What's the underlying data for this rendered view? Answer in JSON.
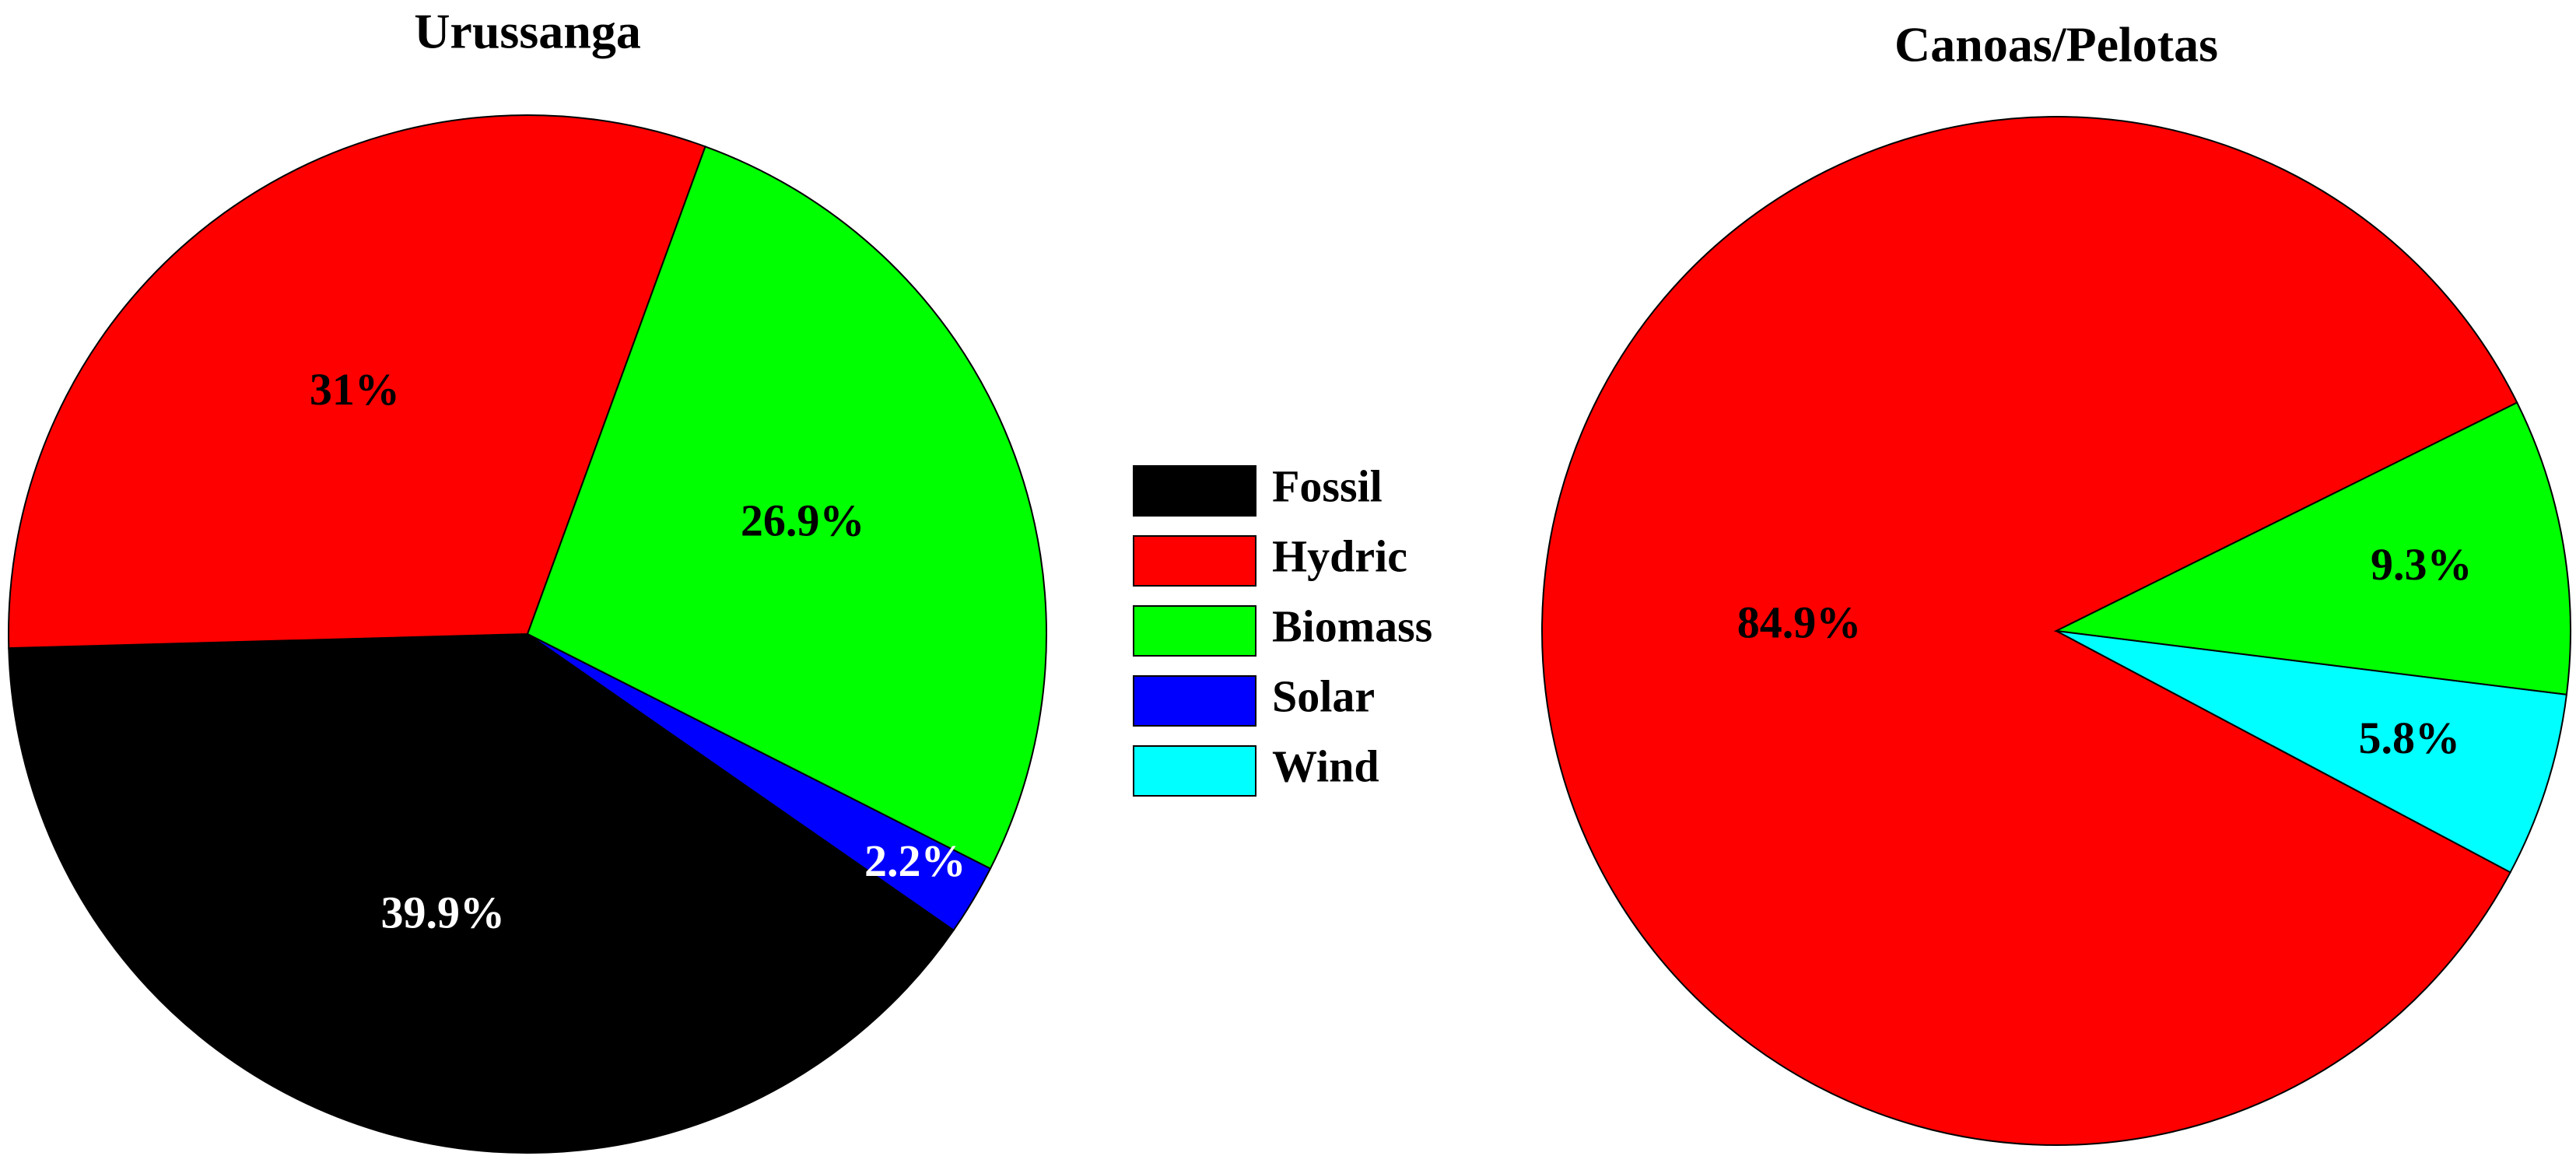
{
  "chart_data": [
    {
      "type": "pie",
      "title": "Urussanga",
      "categories": [
        "Fossil",
        "Hydric",
        "Biomass",
        "Solar"
      ],
      "values": [
        39.9,
        31,
        26.9,
        2.2
      ],
      "value_labels": [
        "39.9%",
        "31%",
        "26.9%",
        "2.2%"
      ],
      "colors": [
        "#000000",
        "#ff0000",
        "#00ff00",
        "#0000ff"
      ]
    },
    {
      "type": "pie",
      "title": "Canoas/Pelotas",
      "categories": [
        "Hydric",
        "Biomass",
        "Wind"
      ],
      "values": [
        84.9,
        9.3,
        5.8
      ],
      "value_labels": [
        "84.9%",
        "9.3%",
        "5.8%"
      ],
      "colors": [
        "#ff0000",
        "#00ff00",
        "#00ffff"
      ]
    }
  ]
}
